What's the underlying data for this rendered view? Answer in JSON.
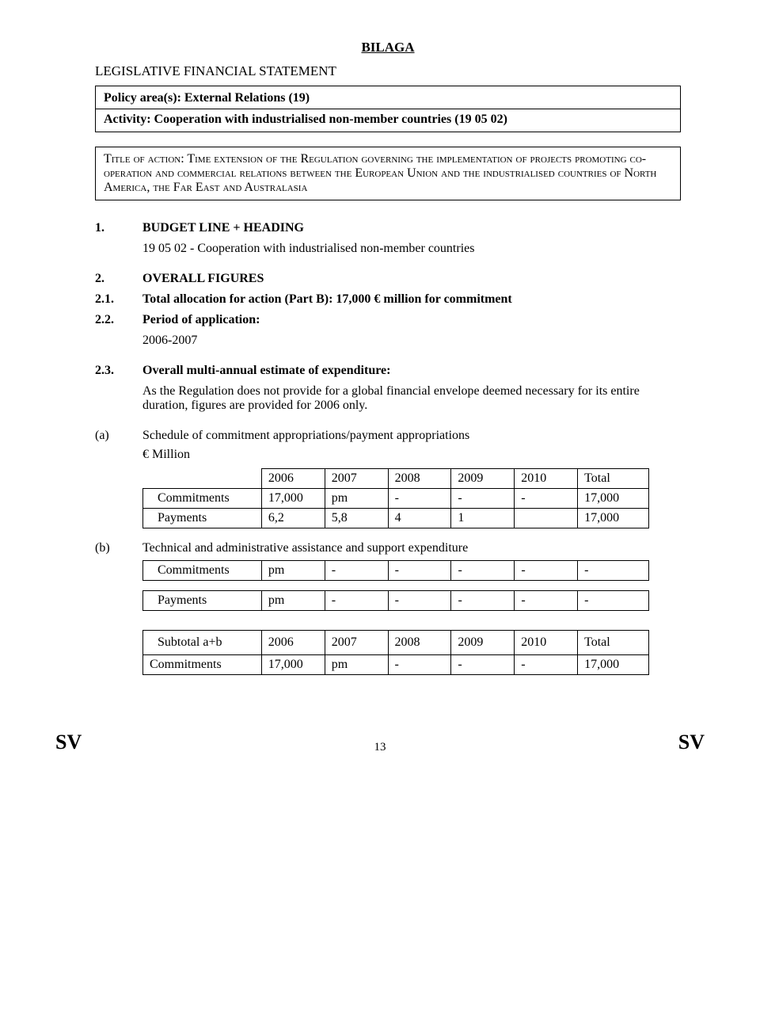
{
  "header": {
    "bilaga": "BILAGA",
    "statement_title": "LEGISLATIVE FINANCIAL STATEMENT",
    "policy_area": "Policy area(s): External Relations (19)",
    "activity": "Activity: Cooperation with industrialised non-member countries (19 05 02)",
    "title_of_action_label": "Title of action:",
    "title_of_action_body": " Time extension of the Regulation governing the implementation of projects promoting co-operation and commercial relations between the European Union and the industrialised countries of North America, the Far East and Australasia"
  },
  "sections": {
    "s1": {
      "num": "1.",
      "heading": "BUDGET LINE + HEADING",
      "body": "19 05 02 - Cooperation with industrialised non-member countries"
    },
    "s2": {
      "num": "2.",
      "heading": "OVERALL FIGURES"
    },
    "s21": {
      "num": "2.1.",
      "heading": "Total allocation for action (Part B): 17,000 € million for commitment"
    },
    "s22": {
      "num": "2.2.",
      "heading": "Period of application:",
      "body": "2006-2007"
    },
    "s23": {
      "num": "2.3.",
      "heading": "Overall multi-annual estimate of expenditure:",
      "body": "As the Regulation does not provide for a global financial envelope deemed necessary for its entire duration, figures are provided for 2006 only."
    },
    "a": {
      "label": "(a)",
      "text": "Schedule of commitment appropriations/payment appropriations",
      "unit": "€ Million"
    },
    "b": {
      "label": "(b)",
      "text": "Technical and administrative assistance and support expenditure"
    }
  },
  "table_a": {
    "headers": [
      "",
      "2006",
      "2007",
      "2008",
      "2009",
      "2010",
      "Total"
    ],
    "rows": [
      [
        "Commitments",
        "17,000",
        "pm",
        "-",
        "-",
        "-",
        "17,000"
      ],
      [
        "Payments",
        "6,2",
        "5,8",
        "4",
        "1",
        "",
        "17,000"
      ]
    ],
    "col_widths": [
      "150px",
      "80px",
      "80px",
      "80px",
      "80px",
      "80px",
      "90px"
    ]
  },
  "table_b": {
    "rows": [
      [
        "Commitments",
        "pm",
        "-",
        "-",
        "-",
        "-",
        "-"
      ],
      [
        "Payments",
        "pm",
        "-",
        "-",
        "-",
        "-",
        "-"
      ]
    ],
    "col_widths": [
      "150px",
      "80px",
      "80px",
      "80px",
      "80px",
      "80px",
      "90px"
    ]
  },
  "table_subtotal": {
    "headers": [
      "Subtotal a+b",
      "2006",
      "2007",
      "2008",
      "2009",
      "2010",
      "Total"
    ],
    "row": [
      "Commitments",
      "17,000",
      "pm",
      "-",
      "-",
      "-",
      "17,000"
    ],
    "col_widths": [
      "150px",
      "80px",
      "80px",
      "80px",
      "80px",
      "80px",
      "90px"
    ]
  },
  "footer": {
    "left": "SV",
    "page": "13",
    "right": "SV"
  }
}
